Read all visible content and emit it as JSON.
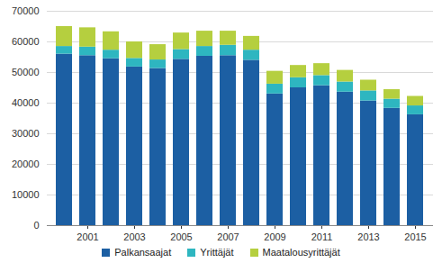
{
  "chart_data": {
    "type": "bar",
    "stacked": true,
    "grid": true,
    "categories": [
      null,
      "2001",
      null,
      "2003",
      null,
      "2005",
      null,
      "2007",
      null,
      "2009",
      null,
      "2011",
      null,
      "2013",
      null,
      "2015"
    ],
    "series": [
      {
        "name": "Palkansaajat",
        "color": "#1c5fa3",
        "values": [
          56000,
          55500,
          54500,
          51800,
          51300,
          54300,
          55300,
          55500,
          54000,
          43000,
          45000,
          45700,
          43600,
          40700,
          38300,
          36200
        ]
      },
      {
        "name": "Yrittäjät",
        "color": "#2eb6c0",
        "values": [
          2500,
          2800,
          2800,
          2800,
          2800,
          3200,
          3200,
          3400,
          3300,
          3200,
          3300,
          3300,
          3300,
          3300,
          3000,
          2900
        ]
      },
      {
        "name": "Maatalousyrittäjät",
        "color": "#b5cf3f",
        "values": [
          6500,
          6300,
          6000,
          5400,
          5000,
          5400,
          5000,
          4600,
          4500,
          4200,
          4000,
          3900,
          3800,
          3500,
          3100,
          3100
        ]
      }
    ],
    "ylim": [
      0,
      70000
    ],
    "yticks": [
      0,
      10000,
      20000,
      30000,
      40000,
      50000,
      60000,
      70000
    ],
    "legend": "bottom"
  }
}
